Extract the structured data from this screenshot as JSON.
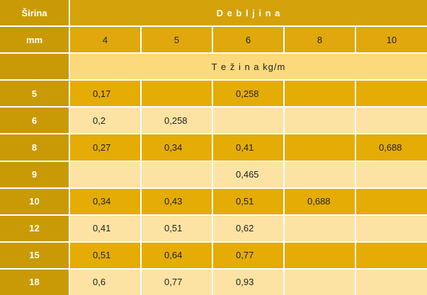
{
  "table": {
    "corner_top": "Širina",
    "group_header": "D e b l j i n a",
    "corner_unit": "mm",
    "thickness": [
      "4",
      "5",
      "6",
      "8",
      "10"
    ],
    "weight_header": "T e ž i n a   kg/m",
    "rows": [
      {
        "width": "5",
        "cells": [
          "0,17",
          null,
          "0,258",
          null,
          null
        ]
      },
      {
        "width": "6",
        "cells": [
          "0,2",
          "0,258",
          null,
          null,
          null
        ]
      },
      {
        "width": "8",
        "cells": [
          "0,27",
          "0,34",
          "0,41",
          null,
          "0,688"
        ]
      },
      {
        "width": "9",
        "cells": [
          null,
          null,
          "0,465",
          null,
          null
        ]
      },
      {
        "width": "10",
        "cells": [
          "0,34",
          "0,43",
          "0,51",
          "0,688",
          null
        ]
      },
      {
        "width": "12",
        "cells": [
          "0,41",
          "0,51",
          "0,62",
          null,
          null
        ]
      },
      {
        "width": "15",
        "cells": [
          "0,51",
          "0,64",
          "0,77",
          null,
          null
        ]
      },
      {
        "width": "18",
        "cells": [
          "0,6",
          "0,77",
          "0,93",
          null,
          null
        ]
      }
    ]
  }
}
